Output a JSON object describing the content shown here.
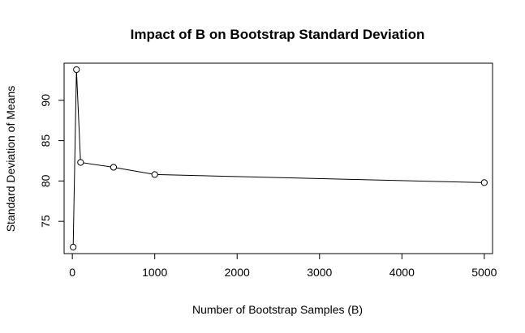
{
  "chart_data": {
    "type": "line",
    "title": "Impact of B on Bootstrap Standard Deviation",
    "xlabel": "Number of Bootstrap Samples (B)",
    "ylabel": "Standard Deviation of Means",
    "x": [
      10,
      50,
      100,
      500,
      1000,
      5000
    ],
    "y": [
      71.8,
      93.8,
      82.3,
      81.7,
      80.8,
      79.8
    ],
    "xlim": [
      -100,
      5100
    ],
    "ylim": [
      71,
      94.6
    ],
    "xticks": [
      0,
      1000,
      2000,
      3000,
      4000,
      5000
    ],
    "xtick_labels": [
      "0",
      "1000",
      "2000",
      "3000",
      "4000",
      "5000"
    ],
    "yticks": [
      75,
      80,
      85,
      90
    ],
    "ytick_labels": [
      "75",
      "80",
      "85",
      "90"
    ],
    "marker": "open-circle",
    "line_color": "#000000",
    "grid": false,
    "legend": "none"
  }
}
